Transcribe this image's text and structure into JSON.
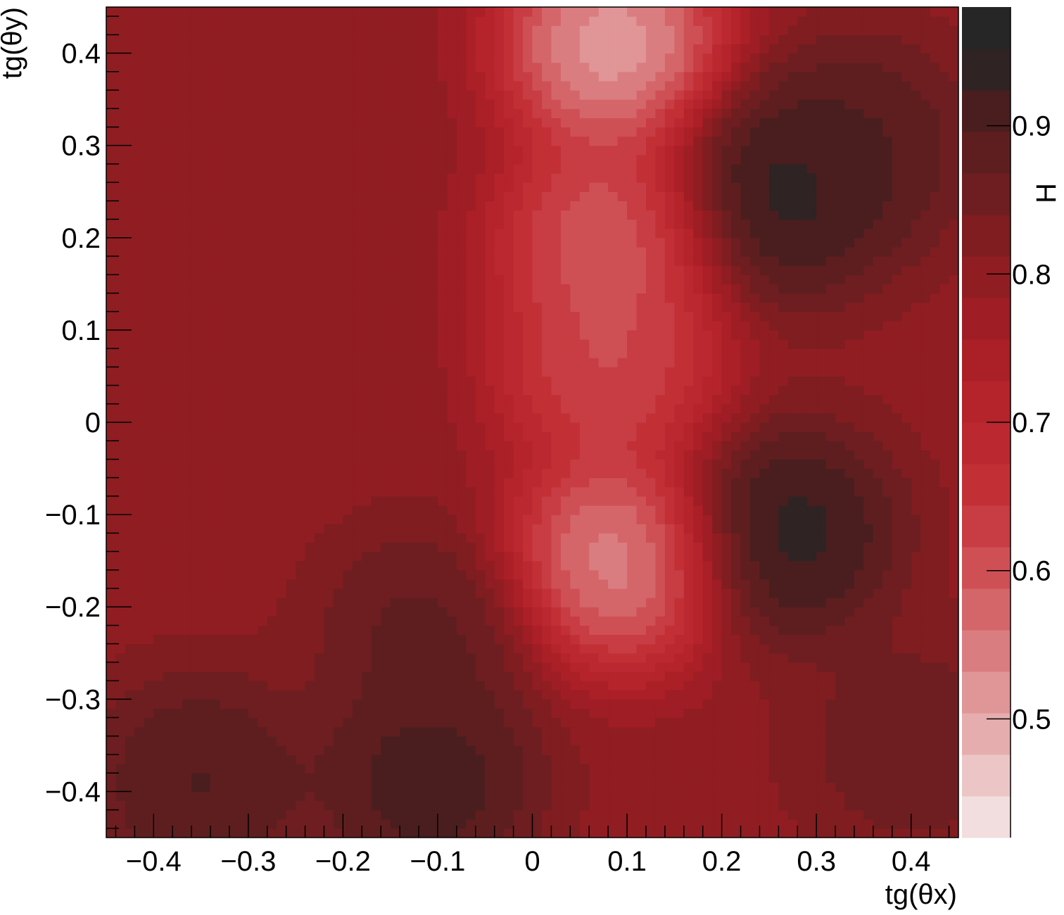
{
  "chart_data": {
    "type": "heatmap",
    "xlabel": "tg(θx)",
    "ylabel": "tg(θy)",
    "zlabel": "H",
    "xlim": [
      -0.45,
      0.45
    ],
    "ylim": [
      -0.45,
      0.45
    ],
    "zlim": [
      0.42,
      0.98
    ],
    "x_ticks": [
      -0.4,
      -0.3,
      -0.2,
      -0.1,
      0,
      0.1,
      0.2,
      0.3,
      0.4
    ],
    "x_tick_labels": [
      "−0.4",
      "−0.3",
      "−0.2",
      "−0.1",
      "0",
      "0.1",
      "0.2",
      "0.3",
      "0.4"
    ],
    "y_ticks": [
      0.4,
      0.3,
      0.2,
      0.1,
      0,
      -0.1,
      -0.2,
      -0.3,
      -0.4
    ],
    "y_tick_labels": [
      "0.4",
      "0.3",
      "0.2",
      "0.1",
      "0",
      "−0.1",
      "−0.2",
      "−0.3",
      "−0.4"
    ],
    "z_ticks": [
      0.9,
      0.8,
      0.7,
      0.6,
      0.5
    ],
    "z_tick_labels": [
      "0.9",
      "0.8",
      "0.7",
      "0.6",
      "0.5"
    ],
    "palette": [
      "#f2dede",
      "#ecc6c6",
      "#e6adae",
      "#e09597",
      "#da7d80",
      "#d4666a",
      "#ce5055",
      "#c83c43",
      "#c23036",
      "#bc2830",
      "#b5232b",
      "#ab1f27",
      "#9f1d24",
      "#901d22",
      "#7f1d20",
      "#6e1e20",
      "#5e1e1f",
      "#4a1e1e",
      "#2f2324",
      "#262626"
    ],
    "background_level": 0.8,
    "features": [
      {
        "x": 0.085,
        "y": 0.41,
        "level": 0.42
      },
      {
        "x": 0.08,
        "y": 0.2,
        "level": 0.53
      },
      {
        "x": 0.08,
        "y": 0.06,
        "level": 0.56
      },
      {
        "x": 0.09,
        "y": -0.15,
        "level": 0.46
      },
      {
        "x": 0.265,
        "y": 0.25,
        "level": 0.98
      },
      {
        "x": 0.27,
        "y": -0.12,
        "level": 0.98
      },
      {
        "x": -0.11,
        "y": -0.39,
        "level": 0.95
      },
      {
        "x": -0.35,
        "y": -0.39,
        "level": 0.93
      },
      {
        "x": -0.11,
        "y": -0.23,
        "level": 0.9
      },
      {
        "x": 0.35,
        "y": 0.3,
        "level": 0.92
      },
      {
        "x": 0.4,
        "y": -0.35,
        "level": 0.88
      }
    ],
    "grid": false
  }
}
